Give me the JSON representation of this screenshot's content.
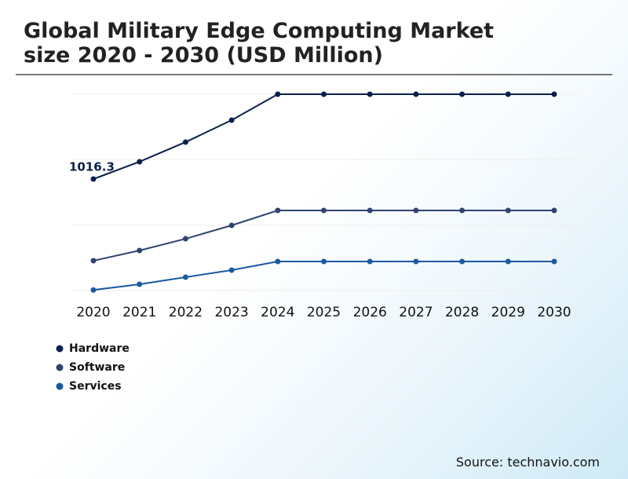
{
  "chart_data": {
    "type": "line",
    "title": "Global Military Edge Computing Market size 2020 - 2030 (USD Million)",
    "categories": [
      "2020",
      "2021",
      "2022",
      "2023",
      "2024",
      "2025",
      "2026",
      "2027",
      "2028",
      "2029",
      "2030"
    ],
    "series": [
      {
        "name": "Hardware",
        "color": "#0b1f4b",
        "values": [
          1016.3,
          1174,
          1353,
          1553,
          1789,
          1789,
          1789,
          1789,
          1789,
          1789,
          1789
        ]
      },
      {
        "name": "Software",
        "color": "#2f4470",
        "values": [
          272,
          365,
          472,
          594,
          730,
          730,
          730,
          730,
          730,
          730,
          730
        ]
      },
      {
        "name": "Services",
        "color": "#1a5aa0",
        "values": [
          5,
          57,
          122,
          186,
          265,
          265,
          265,
          265,
          265,
          265,
          265
        ]
      }
    ],
    "ylim": [
      0,
      1800
    ],
    "source": "Source: technavio.com"
  }
}
